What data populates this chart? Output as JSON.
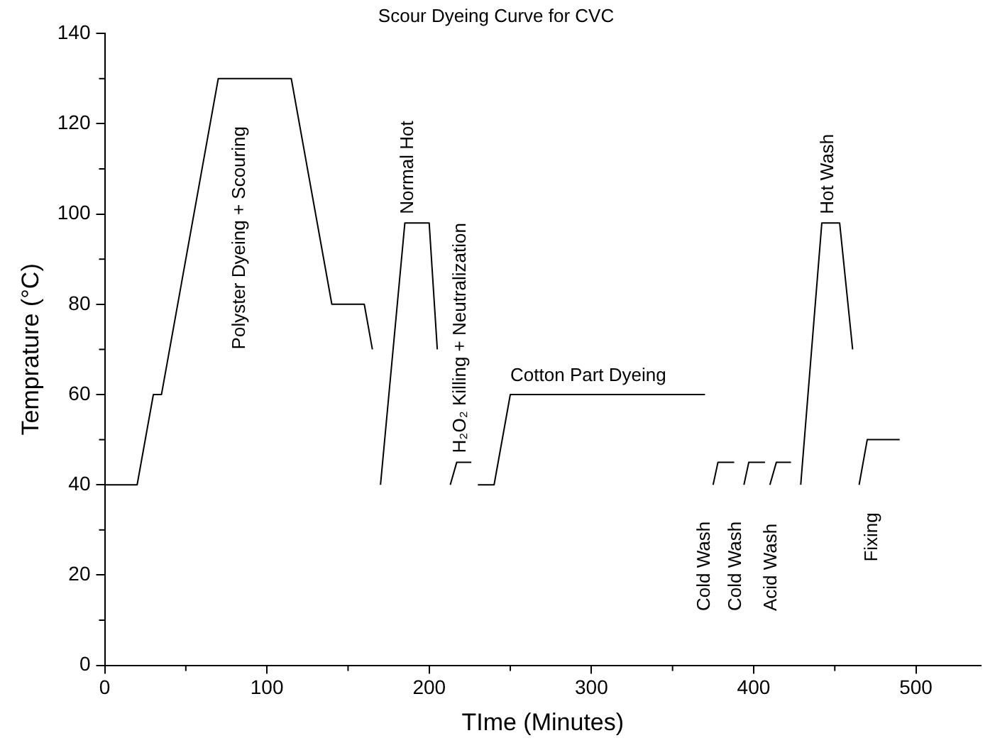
{
  "chart_data": {
    "type": "line",
    "title": "Scour Dyeing Curve for CVC",
    "xlabel": "TIme (Minutes)",
    "ylabel": "Temprature (°C)",
    "xlim": [
      0,
      540
    ],
    "xticks": [
      0,
      100,
      200,
      300,
      400,
      500
    ],
    "ylim": [
      0,
      140
    ],
    "yticks": [
      0,
      20,
      40,
      60,
      80,
      100,
      120,
      140
    ],
    "grid": false,
    "legend": false,
    "marker": "none",
    "line_style": "solid",
    "series": [
      {
        "color": "#000000",
        "x": [
          0,
          20,
          30,
          35,
          70,
          115,
          140,
          160,
          165
        ],
        "values": [
          40,
          40,
          60,
          60,
          130,
          130,
          80,
          80,
          70
        ]
      },
      {
        "color": "#000000",
        "x": [
          170,
          185,
          200,
          205
        ],
        "values": [
          40,
          98,
          98,
          70
        ]
      },
      {
        "color": "#000000",
        "x": [
          213,
          217,
          226
        ],
        "values": [
          40,
          45,
          45
        ]
      },
      {
        "color": "#000000",
        "x": [
          230,
          240,
          250,
          370
        ],
        "values": [
          40,
          40,
          60,
          60
        ]
      },
      {
        "color": "#000000",
        "x": [
          375,
          378,
          388
        ],
        "values": [
          40,
          45,
          45
        ]
      },
      {
        "color": "#000000",
        "x": [
          394,
          397,
          407
        ],
        "values": [
          40,
          45,
          45
        ]
      },
      {
        "color": "#000000",
        "x": [
          410,
          414,
          423
        ],
        "values": [
          40,
          45,
          45
        ]
      },
      {
        "color": "#000000",
        "x": [
          429,
          442,
          453,
          461
        ],
        "values": [
          40,
          98,
          98,
          70
        ]
      },
      {
        "color": "#000000",
        "x": [
          465,
          470,
          490
        ],
        "values": [
          40,
          50,
          50
        ]
      }
    ],
    "annotations": [
      "Polyster Dyeing + Scouring",
      "Normal Hot",
      "H₂O₂ Killing + Neutralization",
      "Cotton Part Dyeing",
      "Cold Wash",
      "Cold Wash",
      "Acid Wash",
      "Hot Wash",
      "Fixing"
    ]
  }
}
